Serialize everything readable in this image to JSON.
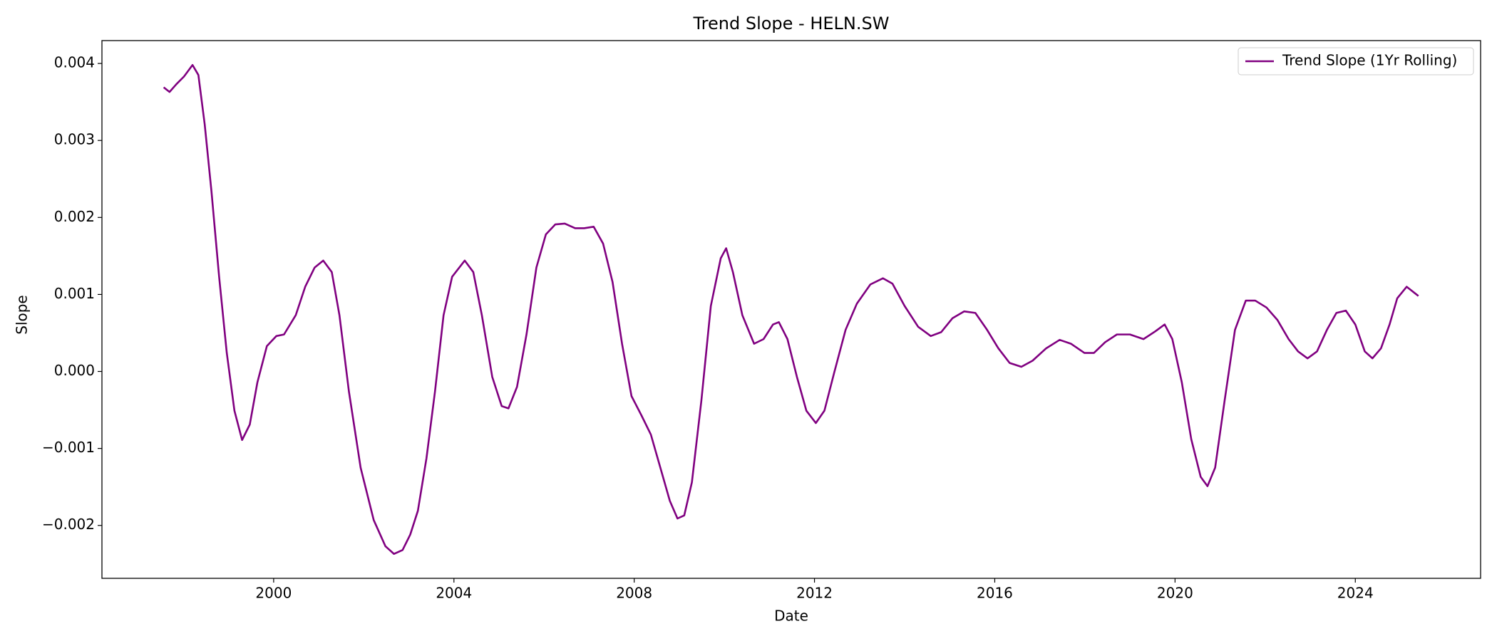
{
  "chart_data": {
    "type": "line",
    "title": "Trend Slope - HELN.SW",
    "xlabel": "Date",
    "ylabel": "Slope",
    "legend": "upper right",
    "x": [
      1997.56,
      1997.69,
      1997.84,
      1998.01,
      1998.2,
      1998.33,
      1998.47,
      1998.62,
      1998.79,
      1998.96,
      1999.13,
      1999.3,
      1999.47,
      1999.64,
      1999.85,
      2000.06,
      2000.23,
      2000.49,
      2000.7,
      2000.91,
      2001.1,
      2001.29,
      2001.46,
      2001.67,
      2001.93,
      2002.22,
      2002.48,
      2002.67,
      2002.86,
      2003.03,
      2003.2,
      2003.39,
      2003.58,
      2003.77,
      2003.96,
      2004.24,
      2004.43,
      2004.62,
      2004.85,
      2005.06,
      2005.21,
      2005.4,
      2005.61,
      2005.83,
      2006.04,
      2006.25,
      2006.46,
      2006.69,
      2006.89,
      2007.1,
      2007.31,
      2007.52,
      2007.73,
      2007.94,
      2008.16,
      2008.37,
      2008.58,
      2008.79,
      2008.96,
      2009.11,
      2009.28,
      2009.49,
      2009.7,
      2009.92,
      2010.04,
      2010.19,
      2010.4,
      2010.66,
      2010.87,
      2011.08,
      2011.21,
      2011.4,
      2011.61,
      2011.82,
      2012.03,
      2012.22,
      2012.44,
      2012.69,
      2012.94,
      2013.24,
      2013.52,
      2013.73,
      2014.0,
      2014.3,
      2014.58,
      2014.81,
      2015.06,
      2015.32,
      2015.57,
      2015.83,
      2016.08,
      2016.33,
      2016.59,
      2016.84,
      2017.14,
      2017.44,
      2017.69,
      2017.99,
      2018.2,
      2018.45,
      2018.71,
      2019.0,
      2019.3,
      2019.56,
      2019.77,
      2019.94,
      2020.15,
      2020.36,
      2020.57,
      2020.72,
      2020.89,
      2021.1,
      2021.33,
      2021.57,
      2021.78,
      2022.03,
      2022.27,
      2022.52,
      2022.73,
      2022.94,
      2023.15,
      2023.37,
      2023.58,
      2023.79,
      2024.0,
      2024.21,
      2024.38,
      2024.57,
      2024.76,
      2024.93,
      2025.14,
      2025.4
    ],
    "series": [
      {
        "name": "Trend Slope (1Yr Rolling)",
        "color": "#800080",
        "values": [
          0.00369,
          0.00363,
          0.00373,
          0.00383,
          0.00398,
          0.00385,
          0.00321,
          0.00234,
          0.00123,
          0.00024,
          -0.00051,
          -0.00089,
          -0.00069,
          -0.00014,
          0.00033,
          0.00046,
          0.00048,
          0.00073,
          0.0011,
          0.00135,
          0.00144,
          0.00129,
          0.00073,
          -0.00026,
          -0.00125,
          -0.00193,
          -0.00227,
          -0.00237,
          -0.00232,
          -0.00212,
          -0.00181,
          -0.00113,
          -0.00026,
          0.00073,
          0.00123,
          0.00144,
          0.00129,
          0.00073,
          -7e-05,
          -0.00045,
          -0.00048,
          -0.0002,
          0.00048,
          0.00135,
          0.00178,
          0.00191,
          0.00192,
          0.00186,
          0.00186,
          0.00188,
          0.00166,
          0.00116,
          0.00036,
          -0.00032,
          -0.00057,
          -0.00082,
          -0.00125,
          -0.00168,
          -0.00191,
          -0.00187,
          -0.00144,
          -0.00038,
          0.00085,
          0.00147,
          0.0016,
          0.00129,
          0.00073,
          0.00036,
          0.00042,
          0.00061,
          0.00064,
          0.00042,
          -7e-05,
          -0.00051,
          -0.00067,
          -0.00051,
          -1e-05,
          0.00054,
          0.00088,
          0.00113,
          0.00121,
          0.00114,
          0.00085,
          0.00058,
          0.00046,
          0.00051,
          0.00069,
          0.00078,
          0.00076,
          0.00054,
          0.0003,
          0.00011,
          6e-05,
          0.00014,
          0.0003,
          0.00041,
          0.00036,
          0.00024,
          0.00024,
          0.00038,
          0.00048,
          0.00048,
          0.00042,
          0.00052,
          0.00061,
          0.00042,
          -0.00014,
          -0.00088,
          -0.00137,
          -0.00149,
          -0.00125,
          -0.00038,
          0.00054,
          0.00092,
          0.00092,
          0.00083,
          0.00067,
          0.00042,
          0.00026,
          0.00017,
          0.00026,
          0.00054,
          0.00076,
          0.00079,
          0.00061,
          0.00026,
          0.00017,
          0.0003,
          0.00061,
          0.00095,
          0.0011,
          0.00098
        ]
      }
    ],
    "xlim": [
      1996.19,
      2026.78
    ],
    "xticks": [
      2000,
      2004,
      2008,
      2012,
      2016,
      2020,
      2024
    ],
    "ylim": [
      -0.002687,
      0.004297
    ],
    "yticks": [
      {
        "value": -0.002,
        "label": "−0.002"
      },
      {
        "value": -0.001,
        "label": "−0.001"
      },
      {
        "value": 0,
        "label": "0.000"
      },
      0.001,
      0.002,
      0.003,
      0.004
    ]
  }
}
